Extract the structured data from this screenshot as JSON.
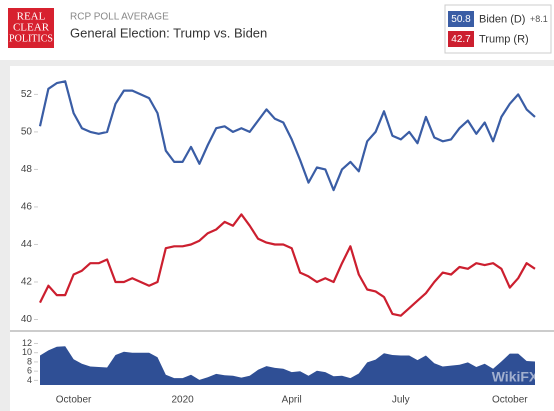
{
  "logo": [
    "REAL",
    "CLEAR",
    "POLITICS"
  ],
  "watermark": "WikiFX",
  "chart_data": [
    {
      "type": "line",
      "subtitle": "RCP POLL AVERAGE",
      "title": "General Election: Trump vs. Biden",
      "ylim": [
        39.6,
        53.3
      ],
      "yticks": [
        40,
        42,
        44,
        46,
        48,
        50,
        52
      ],
      "series": [
        {
          "name": "Biden (D)",
          "color": "#3a5da5",
          "latest": 50.8,
          "spread_label": "+8.1",
          "values": [
            50.3,
            52.3,
            52.6,
            52.7,
            51.0,
            50.2,
            50.0,
            49.9,
            50.0,
            51.5,
            52.2,
            52.2,
            52.0,
            51.8,
            51.0,
            49.0,
            48.4,
            48.4,
            49.2,
            48.3,
            49.3,
            50.2,
            50.3,
            50.0,
            50.2,
            50.0,
            50.6,
            51.2,
            50.7,
            50.5,
            49.6,
            48.5,
            47.3,
            48.1,
            48.0,
            46.9,
            48.0,
            48.4,
            47.9,
            49.5,
            50.0,
            51.1,
            49.8,
            49.6,
            50.0,
            49.4,
            50.8,
            49.7,
            49.5,
            49.6,
            50.2,
            50.6,
            49.9,
            50.5,
            49.5,
            50.8,
            51.5,
            52.0,
            51.2,
            50.8
          ]
        },
        {
          "name": "Trump (R)",
          "color": "#cc1f2f",
          "latest": 42.7,
          "values": [
            40.9,
            41.8,
            41.3,
            41.3,
            42.4,
            42.6,
            43.0,
            43.0,
            43.2,
            42.0,
            42.0,
            42.2,
            42.0,
            41.8,
            42.0,
            43.8,
            43.9,
            43.9,
            44.0,
            44.2,
            44.6,
            44.8,
            45.2,
            45.0,
            45.6,
            45.0,
            44.3,
            44.1,
            44.0,
            44.0,
            43.8,
            42.5,
            42.3,
            42.0,
            42.2,
            42.0,
            43.0,
            43.9,
            42.4,
            41.6,
            41.5,
            41.2,
            40.3,
            40.2,
            40.6,
            41.0,
            41.4,
            42.0,
            42.5,
            42.4,
            42.8,
            42.7,
            43.0,
            42.9,
            43.0,
            42.7,
            41.7,
            42.2,
            43.0,
            42.7
          ]
        }
      ]
    },
    {
      "type": "area",
      "color": "#2f4f95",
      "ylim": [
        3,
        13.4
      ],
      "yticks": [
        4,
        6,
        8,
        10,
        12
      ],
      "categories": [
        null,
        null,
        null,
        null,
        "October",
        null,
        null,
        null,
        null,
        null,
        null,
        null,
        null,
        null,
        null,
        null,
        null,
        "2020",
        null,
        null,
        null,
        null,
        null,
        null,
        null,
        null,
        null,
        null,
        null,
        null,
        "April",
        null,
        null,
        null,
        null,
        null,
        null,
        null,
        null,
        null,
        null,
        null,
        null,
        "July",
        null,
        null,
        null,
        null,
        null,
        null,
        null,
        null,
        null,
        null,
        null,
        null,
        "October",
        null,
        null,
        null
      ],
      "values": [
        9.4,
        10.5,
        11.3,
        11.4,
        8.6,
        7.6,
        7.0,
        6.9,
        6.8,
        9.5,
        10.2,
        10.0,
        10.0,
        10.0,
        9.0,
        5.2,
        4.5,
        4.5,
        5.2,
        4.1,
        4.7,
        5.4,
        5.1,
        5.0,
        4.6,
        5.0,
        6.3,
        7.1,
        6.7,
        6.5,
        5.8,
        6.0,
        5.0,
        6.1,
        5.8,
        4.9,
        5.0,
        4.5,
        5.5,
        7.9,
        8.5,
        9.9,
        9.5,
        9.4,
        9.4,
        8.4,
        9.4,
        7.7,
        7.0,
        7.2,
        7.4,
        7.9,
        6.9,
        7.6,
        6.5,
        8.1,
        9.8,
        9.8,
        8.2,
        8.1
      ]
    }
  ]
}
